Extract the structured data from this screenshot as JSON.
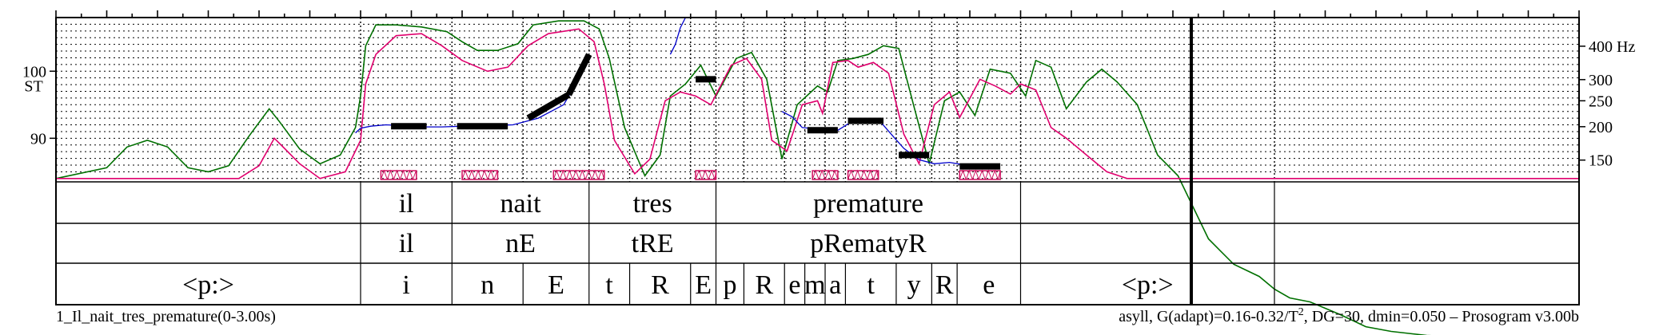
{
  "chart_data": {
    "type": "line",
    "title": "",
    "xlim": [
      0,
      3.0
    ],
    "st_lim": [
      83.5,
      108
    ],
    "y_axis_left": {
      "label": "ST",
      "ticks": [
        90,
        100
      ]
    },
    "y_axis_right": {
      "unit": "Hz",
      "ticks": [
        150,
        200,
        250,
        300,
        400
      ]
    },
    "grid": true,
    "tiers": [
      {
        "name": "words",
        "intervals": [
          {
            "start": 0.0,
            "end": 0.6,
            "text": ""
          },
          {
            "start": 0.6,
            "end": 0.78,
            "text": "il"
          },
          {
            "start": 0.78,
            "end": 1.05,
            "text": "nait"
          },
          {
            "start": 1.05,
            "end": 1.3,
            "text": "tres"
          },
          {
            "start": 1.3,
            "end": 1.9,
            "text": "premature"
          },
          {
            "start": 1.9,
            "end": 2.4,
            "text": ""
          }
        ]
      },
      {
        "name": "syllables",
        "intervals": [
          {
            "start": 0.0,
            "end": 0.6,
            "text": ""
          },
          {
            "start": 0.6,
            "end": 0.78,
            "text": "il"
          },
          {
            "start": 0.78,
            "end": 1.05,
            "text": "nE"
          },
          {
            "start": 1.05,
            "end": 1.3,
            "text": "tRE"
          },
          {
            "start": 1.3,
            "end": 1.9,
            "text": "pRematyR"
          },
          {
            "start": 1.9,
            "end": 2.4,
            "text": ""
          }
        ]
      },
      {
        "name": "phones",
        "intervals": [
          {
            "start": 0.0,
            "end": 0.6,
            "text": "<p:>"
          },
          {
            "start": 0.6,
            "end": 0.78,
            "text": "i"
          },
          {
            "start": 0.78,
            "end": 0.92,
            "text": "n"
          },
          {
            "start": 0.92,
            "end": 1.05,
            "text": "E"
          },
          {
            "start": 1.05,
            "end": 1.13,
            "text": "t"
          },
          {
            "start": 1.13,
            "end": 1.25,
            "text": "R"
          },
          {
            "start": 1.25,
            "end": 1.3,
            "text": "E"
          },
          {
            "start": 1.3,
            "end": 1.355,
            "text": "p"
          },
          {
            "start": 1.355,
            "end": 1.435,
            "text": "R"
          },
          {
            "start": 1.435,
            "end": 1.475,
            "text": "e"
          },
          {
            "start": 1.475,
            "end": 1.515,
            "text": "m"
          },
          {
            "start": 1.515,
            "end": 1.555,
            "text": "a"
          },
          {
            "start": 1.555,
            "end": 1.655,
            "text": "t"
          },
          {
            "start": 1.655,
            "end": 1.725,
            "text": "y"
          },
          {
            "start": 1.725,
            "end": 1.775,
            "text": "R"
          },
          {
            "start": 1.775,
            "end": 1.9,
            "text": "e"
          },
          {
            "start": 1.9,
            "end": 2.4,
            "text": "<p:>"
          }
        ]
      }
    ],
    "stylized_pitch": [
      {
        "t0": 0.66,
        "t1": 0.73,
        "st0": 91.8,
        "st1": 91.8
      },
      {
        "t0": 0.79,
        "t1": 0.89,
        "st0": 91.8,
        "st1": 91.8
      },
      {
        "t0": 0.93,
        "t1": 1.01,
        "st0": 93.0,
        "st1": 96.5
      },
      {
        "t0": 1.01,
        "t1": 1.05,
        "st0": 96.5,
        "st1": 102.5
      },
      {
        "t0": 1.26,
        "t1": 1.3,
        "st0": 98.8,
        "st1": 98.8
      },
      {
        "t0": 1.48,
        "t1": 1.54,
        "st0": 91.2,
        "st1": 91.2
      },
      {
        "t0": 1.56,
        "t1": 1.63,
        "st0": 92.6,
        "st1": 92.6
      },
      {
        "t0": 1.66,
        "t1": 1.72,
        "st0": 87.5,
        "st1": 87.5
      },
      {
        "t0": 1.78,
        "t1": 1.86,
        "st0": 85.8,
        "st1": 85.8
      }
    ],
    "f0_trace": [
      [
        0.59,
        90.8
      ],
      [
        0.6,
        91.5
      ],
      [
        0.62,
        91.8
      ],
      [
        0.65,
        92.0
      ],
      [
        0.68,
        91.9
      ],
      [
        0.72,
        91.7
      ],
      [
        0.76,
        91.7
      ],
      [
        0.8,
        91.8
      ],
      [
        0.85,
        91.9
      ],
      [
        0.9,
        92.0
      ],
      [
        0.95,
        93.0
      ],
      [
        1.0,
        95.0
      ],
      [
        1.04,
        100.2
      ],
      [
        1.05,
        101.8
      ],
      [
        1.21,
        102.5
      ],
      [
        1.22,
        104.0
      ],
      [
        1.23,
        106.5
      ],
      [
        1.24,
        108.0
      ],
      [
        1.43,
        94.0
      ],
      [
        1.45,
        93.2
      ],
      [
        1.47,
        91.6
      ],
      [
        1.51,
        91.3
      ],
      [
        1.54,
        91.2
      ],
      [
        1.57,
        92.6
      ],
      [
        1.62,
        92.8
      ],
      [
        1.65,
        90.2
      ],
      [
        1.67,
        88.5
      ],
      [
        1.7,
        86.8
      ],
      [
        1.73,
        86.2
      ],
      [
        1.76,
        86.4
      ],
      [
        1.8,
        85.9
      ],
      [
        1.87,
        86.0
      ]
    ],
    "intensity_curve": [
      [
        0.0,
        84.0
      ],
      [
        0.1,
        85.6
      ],
      [
        0.14,
        88.7
      ],
      [
        0.18,
        89.7
      ],
      [
        0.22,
        88.7
      ],
      [
        0.26,
        85.6
      ],
      [
        0.3,
        85.0
      ],
      [
        0.34,
        85.9
      ],
      [
        0.38,
        90.3
      ],
      [
        0.42,
        94.4
      ],
      [
        0.44,
        92.5
      ],
      [
        0.48,
        88.4
      ],
      [
        0.52,
        86.2
      ],
      [
        0.56,
        87.5
      ],
      [
        0.59,
        91.6
      ],
      [
        0.6,
        96.3
      ],
      [
        0.61,
        103.8
      ],
      [
        0.63,
        106.9
      ],
      [
        0.67,
        106.9
      ],
      [
        0.72,
        106.6
      ],
      [
        0.77,
        105.9
      ],
      [
        0.8,
        104.4
      ],
      [
        0.83,
        103.1
      ],
      [
        0.87,
        103.1
      ],
      [
        0.91,
        104.1
      ],
      [
        0.94,
        106.9
      ],
      [
        0.99,
        107.5
      ],
      [
        1.04,
        107.5
      ],
      [
        1.07,
        106.3
      ],
      [
        1.09,
        101.9
      ],
      [
        1.12,
        91.6
      ],
      [
        1.16,
        84.4
      ],
      [
        1.19,
        87.5
      ],
      [
        1.21,
        96.3
      ],
      [
        1.24,
        98.1
      ],
      [
        1.27,
        100.9
      ],
      [
        1.3,
        96.3
      ],
      [
        1.34,
        101.9
      ],
      [
        1.37,
        102.8
      ],
      [
        1.4,
        98.8
      ],
      [
        1.43,
        86.9
      ],
      [
        1.46,
        95.0
      ],
      [
        1.5,
        97.8
      ],
      [
        1.52,
        96.9
      ],
      [
        1.54,
        101.6
      ],
      [
        1.57,
        101.9
      ],
      [
        1.6,
        102.5
      ],
      [
        1.63,
        103.8
      ],
      [
        1.66,
        103.4
      ],
      [
        1.69,
        94.7
      ],
      [
        1.72,
        86.2
      ],
      [
        1.75,
        95.6
      ],
      [
        1.78,
        96.9
      ],
      [
        1.81,
        93.4
      ],
      [
        1.84,
        100.3
      ],
      [
        1.88,
        99.7
      ],
      [
        1.91,
        96.3
      ],
      [
        1.93,
        101.6
      ],
      [
        1.96,
        100.6
      ],
      [
        1.99,
        94.4
      ],
      [
        2.03,
        98.4
      ],
      [
        2.06,
        100.3
      ],
      [
        2.09,
        98.4
      ],
      [
        2.13,
        95.0
      ],
      [
        2.17,
        87.5
      ],
      [
        2.21,
        84.4
      ],
      [
        2.27,
        75.0
      ],
      [
        2.32,
        71.2
      ],
      [
        2.37,
        69.4
      ],
      [
        2.4,
        67.5
      ],
      [
        2.43,
        66.2
      ],
      [
        2.47,
        65.6
      ],
      [
        2.53,
        63.7
      ],
      [
        2.58,
        61.9
      ],
      [
        2.63,
        61.2
      ],
      [
        2.7,
        60.6
      ],
      [
        2.78,
        60.3
      ],
      [
        2.85,
        60.0
      ],
      [
        2.92,
        59.7
      ],
      [
        3.0,
        59.4
      ]
    ],
    "f0_curve": [
      [
        0.0,
        84.0
      ],
      [
        0.1,
        84.0
      ],
      [
        0.2,
        84.0
      ],
      [
        0.3,
        84.0
      ],
      [
        0.36,
        84.0
      ],
      [
        0.4,
        85.9
      ],
      [
        0.43,
        90.0
      ],
      [
        0.45,
        88.5
      ],
      [
        0.48,
        86.2
      ],
      [
        0.52,
        84.0
      ],
      [
        0.57,
        85.0
      ],
      [
        0.6,
        89.7
      ],
      [
        0.61,
        98.1
      ],
      [
        0.63,
        102.5
      ],
      [
        0.67,
        105.3
      ],
      [
        0.72,
        105.6
      ],
      [
        0.76,
        103.8
      ],
      [
        0.8,
        101.6
      ],
      [
        0.85,
        100.0
      ],
      [
        0.89,
        100.6
      ],
      [
        0.93,
        103.8
      ],
      [
        0.97,
        105.6
      ],
      [
        1.03,
        106.3
      ],
      [
        1.06,
        104.4
      ],
      [
        1.08,
        98.1
      ],
      [
        1.1,
        89.7
      ],
      [
        1.14,
        84.7
      ],
      [
        1.17,
        86.9
      ],
      [
        1.2,
        95.6
      ],
      [
        1.23,
        96.9
      ],
      [
        1.26,
        96.3
      ],
      [
        1.29,
        95.0
      ],
      [
        1.33,
        100.9
      ],
      [
        1.36,
        101.9
      ],
      [
        1.39,
        98.8
      ],
      [
        1.41,
        89.7
      ],
      [
        1.44,
        88.1
      ],
      [
        1.47,
        95.0
      ],
      [
        1.5,
        95.6
      ],
      [
        1.51,
        93.7
      ],
      [
        1.53,
        101.3
      ],
      [
        1.56,
        101.6
      ],
      [
        1.58,
        100.6
      ],
      [
        1.61,
        101.3
      ],
      [
        1.64,
        99.7
      ],
      [
        1.67,
        90.6
      ],
      [
        1.7,
        86.2
      ],
      [
        1.73,
        95.0
      ],
      [
        1.76,
        96.9
      ],
      [
        1.78,
        93.1
      ],
      [
        1.82,
        98.8
      ],
      [
        1.85,
        97.8
      ],
      [
        1.88,
        96.6
      ],
      [
        1.9,
        98.1
      ],
      [
        1.93,
        97.2
      ],
      [
        1.96,
        91.6
      ],
      [
        1.99,
        90.0
      ],
      [
        2.03,
        87.5
      ],
      [
        2.07,
        85.0
      ],
      [
        2.11,
        84.0
      ],
      [
        2.15,
        84.0
      ],
      [
        2.2,
        84.0
      ],
      [
        2.3,
        84.0
      ],
      [
        2.4,
        84.0
      ],
      [
        2.5,
        84.0
      ],
      [
        2.6,
        84.0
      ],
      [
        2.7,
        84.0
      ],
      [
        2.8,
        84.0
      ],
      [
        2.9,
        84.0
      ],
      [
        3.0,
        84.0
      ]
    ],
    "hatched_nuclei": [
      [
        0.64,
        0.71
      ],
      [
        0.8,
        0.87
      ],
      [
        0.98,
        1.08
      ],
      [
        1.26,
        1.3
      ],
      [
        1.49,
        1.54
      ],
      [
        1.56,
        1.62
      ],
      [
        1.78,
        1.86
      ]
    ],
    "colors": {
      "f0": "#0000cc",
      "intensity": "#007000",
      "raw_f0": "#e0006e",
      "stylized": "#000000",
      "grid": "#000000"
    }
  },
  "footer": {
    "left": "1_Il_nait_tres_premature(0-3.00s)",
    "right_prefix": "asyll, G(adapt)=0.16-0.32/T",
    "right_sup": "2",
    "right_suffix": ", DG=30, dmin=0.050 – Prosogram v3.00b"
  }
}
